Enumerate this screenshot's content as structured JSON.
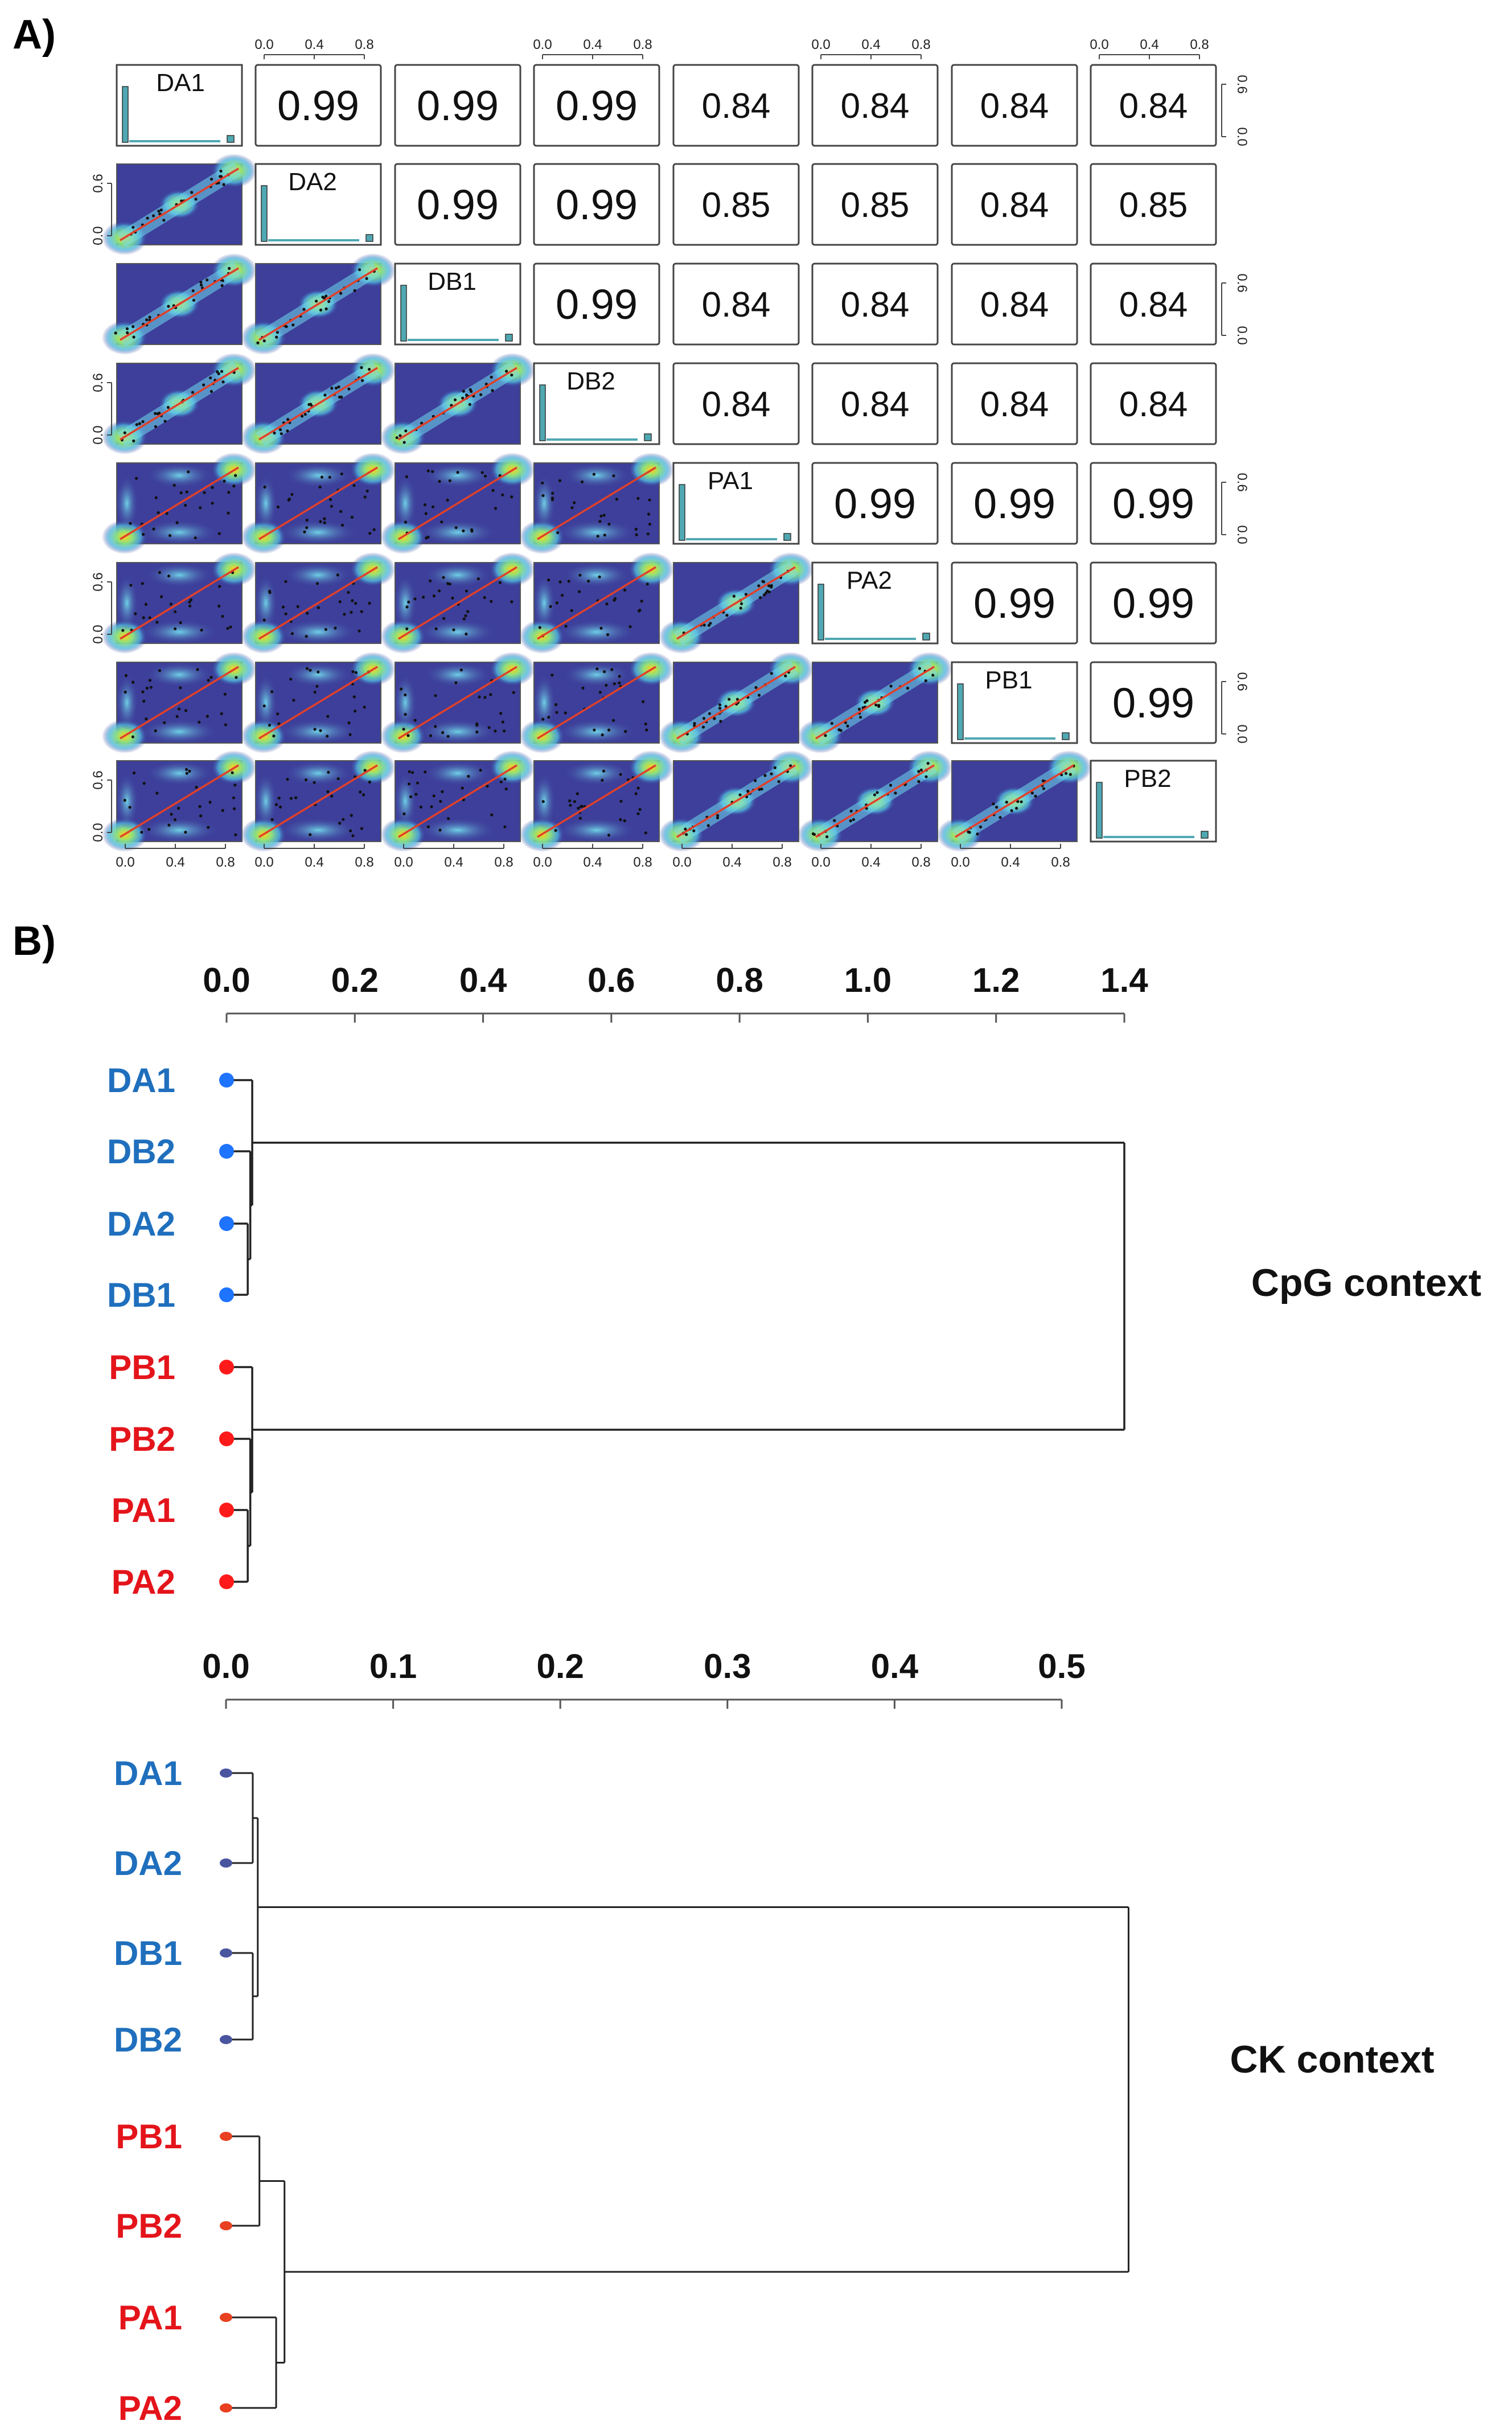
{
  "panel_a_label": "A)",
  "panel_b_label": "B)",
  "colors": {
    "blue_text": "#1f6fbd",
    "red_text": "#e4141b",
    "blue_dot": "#1e73ff",
    "red_dot": "#ff1a1a",
    "ck_blue_dot": "#4a55a0",
    "ck_red_dot": "#e84020",
    "heat_bg": "#3d3f9a",
    "fit_line": "#e0402a",
    "hist_bar": "#4fa8b2"
  },
  "chart_data": [
    {
      "type": "heatmap",
      "title": "",
      "samples": [
        "DA1",
        "DA2",
        "DB1",
        "DB2",
        "PA1",
        "PA2",
        "PB1",
        "PB2"
      ],
      "diagonal": "histogram",
      "lower_triangle": "density scatter with fit line",
      "upper_triangle": "correlation coefficient",
      "axis_ticks": [
        "0.0",
        "0.4",
        "0.8"
      ],
      "side_axis_ticks": [
        "0.0",
        "0.6"
      ],
      "correlations": [
        [
          null,
          "0.99",
          "0.99",
          "0.99",
          "0.84",
          "0.84",
          "0.84",
          "0.84"
        ],
        [
          null,
          null,
          "0.99",
          "0.99",
          "0.85",
          "0.85",
          "0.84",
          "0.85"
        ],
        [
          null,
          null,
          null,
          "0.99",
          "0.84",
          "0.84",
          "0.84",
          "0.84"
        ],
        [
          null,
          null,
          null,
          null,
          "0.84",
          "0.84",
          "0.84",
          "0.84"
        ],
        [
          null,
          null,
          null,
          null,
          null,
          "0.99",
          "0.99",
          "0.99"
        ],
        [
          null,
          null,
          null,
          null,
          null,
          null,
          "0.99",
          "0.99"
        ],
        [
          null,
          null,
          null,
          null,
          null,
          null,
          null,
          "0.99"
        ],
        [
          null,
          null,
          null,
          null,
          null,
          null,
          null,
          null
        ]
      ]
    },
    {
      "type": "dendrogram",
      "label": "CpG context",
      "axis_ticks": [
        "0.0",
        "0.2",
        "0.4",
        "0.6",
        "0.8",
        "1.0",
        "1.2",
        "1.4"
      ],
      "xlim": [
        0,
        1.4
      ],
      "leaves": [
        {
          "name": "DA1",
          "group": "blue"
        },
        {
          "name": "DB2",
          "group": "blue"
        },
        {
          "name": "DA2",
          "group": "blue"
        },
        {
          "name": "DB1",
          "group": "blue"
        },
        {
          "name": "PB1",
          "group": "red"
        },
        {
          "name": "PB2",
          "group": "red"
        },
        {
          "name": "PA1",
          "group": "red"
        },
        {
          "name": "PA2",
          "group": "red"
        }
      ],
      "merges": [
        {
          "a": 2,
          "b": 3,
          "height": 0.033
        },
        {
          "a": 1,
          "b": 8,
          "height": 0.037
        },
        {
          "a": 0,
          "b": 9,
          "height": 0.04
        },
        {
          "a": 6,
          "b": 7,
          "height": 0.033
        },
        {
          "a": 5,
          "b": 11,
          "height": 0.037
        },
        {
          "a": 4,
          "b": 12,
          "height": 0.04
        },
        {
          "a": 10,
          "b": 13,
          "height": 1.4
        }
      ]
    },
    {
      "type": "dendrogram",
      "label": "CK context",
      "axis_ticks": [
        "0.0",
        "0.1",
        "0.2",
        "0.3",
        "0.4",
        "0.5"
      ],
      "xlim": [
        0,
        0.5
      ],
      "leaves": [
        {
          "name": "DA1",
          "group": "blue"
        },
        {
          "name": "DA2",
          "group": "blue"
        },
        {
          "name": "DB1",
          "group": "blue"
        },
        {
          "name": "DB2",
          "group": "blue"
        },
        {
          "name": "PB1",
          "group": "red"
        },
        {
          "name": "PB2",
          "group": "red"
        },
        {
          "name": "PA1",
          "group": "red"
        },
        {
          "name": "PA2",
          "group": "red"
        }
      ],
      "merges": [
        {
          "a": 0,
          "b": 1,
          "height": 0.016
        },
        {
          "a": 2,
          "b": 3,
          "height": 0.016
        },
        {
          "a": 8,
          "b": 9,
          "height": 0.019
        },
        {
          "a": 4,
          "b": 5,
          "height": 0.02
        },
        {
          "a": 6,
          "b": 7,
          "height": 0.03
        },
        {
          "a": 11,
          "b": 12,
          "height": 0.035
        },
        {
          "a": 10,
          "b": 13,
          "height": 0.54
        }
      ]
    }
  ]
}
